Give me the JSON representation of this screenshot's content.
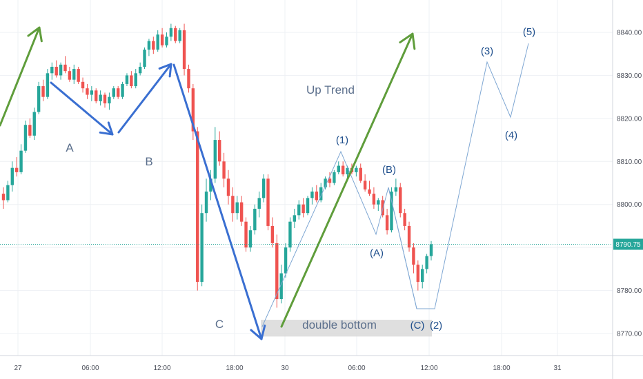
{
  "chart_data": {
    "type": "candlestick",
    "title": "",
    "xlabel": "",
    "ylabel": "",
    "x_ticks": [
      "27",
      "06:00",
      "12:00",
      "18:00",
      "30",
      "06:00",
      "12:00",
      "18:00",
      "31"
    ],
    "y_ticks": [
      8770.0,
      8780.0,
      8790.0,
      8800.0,
      8810.0,
      8820.0,
      8830.0,
      8840.0
    ],
    "ylim": [
      8764.0,
      8846.0
    ],
    "last_price": "8790.75",
    "candles": [
      [
        8802.5,
        8804.0,
        8799.0,
        8801.0
      ],
      [
        8801.0,
        8805.5,
        8800.5,
        8804.5
      ],
      [
        8804.5,
        8810.0,
        8803.0,
        8808.5
      ],
      [
        8808.5,
        8811.0,
        8806.5,
        8807.5
      ],
      [
        8807.5,
        8814.0,
        8807.0,
        8812.5
      ],
      [
        8812.5,
        8819.5,
        8812.0,
        8818.5
      ],
      [
        8818.5,
        8820.0,
        8815.5,
        8816.0
      ],
      [
        8816.0,
        8822.5,
        8815.0,
        8821.5
      ],
      [
        8821.5,
        8828.5,
        8821.0,
        8827.5
      ],
      [
        8827.5,
        8829.0,
        8824.0,
        8825.0
      ],
      [
        8825.0,
        8831.5,
        8824.5,
        8830.5
      ],
      [
        8830.5,
        8833.0,
        8829.0,
        8832.0
      ],
      [
        8832.0,
        8833.5,
        8829.5,
        8830.0
      ],
      [
        8830.0,
        8833.0,
        8829.0,
        8832.5
      ],
      [
        8832.5,
        8834.5,
        8830.5,
        8831.0
      ],
      [
        8831.0,
        8832.0,
        8828.5,
        8829.0
      ],
      [
        8829.0,
        8832.5,
        8828.0,
        8831.5
      ],
      [
        8831.5,
        8832.0,
        8828.0,
        8828.5
      ],
      [
        8828.5,
        8829.5,
        8826.0,
        8827.0
      ],
      [
        8827.0,
        8828.0,
        8824.5,
        8825.5
      ],
      [
        8825.5,
        8827.5,
        8824.0,
        8826.5
      ],
      [
        8826.5,
        8827.0,
        8823.5,
        8824.0
      ],
      [
        8824.0,
        8826.5,
        8823.0,
        8825.5
      ],
      [
        8825.5,
        8826.0,
        8822.5,
        8823.5
      ],
      [
        8823.5,
        8826.0,
        8822.0,
        8825.0
      ],
      [
        8825.0,
        8827.5,
        8824.5,
        8827.0
      ],
      [
        8827.0,
        8827.5,
        8824.5,
        8825.0
      ],
      [
        8825.0,
        8828.5,
        8824.5,
        8828.0
      ],
      [
        8828.0,
        8830.5,
        8827.5,
        8830.0
      ],
      [
        8830.0,
        8831.0,
        8827.0,
        8827.5
      ],
      [
        8827.5,
        8831.5,
        8827.0,
        8830.5
      ],
      [
        8830.5,
        8833.0,
        8830.0,
        8832.0
      ],
      [
        8832.0,
        8836.5,
        8831.5,
        8836.0
      ],
      [
        8836.0,
        8838.5,
        8834.5,
        8838.0
      ],
      [
        8838.0,
        8839.0,
        8835.0,
        8836.0
      ],
      [
        8836.0,
        8840.5,
        8835.5,
        8839.5
      ],
      [
        8839.5,
        8841.0,
        8836.5,
        8837.0
      ],
      [
        8837.0,
        8840.0,
        8836.5,
        8839.0
      ],
      [
        8839.0,
        8842.0,
        8838.0,
        8841.0
      ],
      [
        8841.0,
        8841.5,
        8837.5,
        8838.0
      ],
      [
        8838.0,
        8841.0,
        8837.5,
        8840.5
      ],
      [
        8840.5,
        8842.0,
        8830.0,
        8831.5
      ],
      [
        8831.5,
        8832.5,
        8826.0,
        8827.0
      ],
      [
        8827.0,
        8828.0,
        8815.0,
        8817.0
      ],
      [
        8817.0,
        8818.0,
        8780.0,
        8782.0
      ],
      [
        8782.0,
        8800.0,
        8781.0,
        8798.0
      ],
      [
        8798.0,
        8806.0,
        8796.0,
        8803.0
      ],
      [
        8803.0,
        8808.0,
        8801.0,
        8806.0
      ],
      [
        8806.0,
        8818.0,
        8805.0,
        8815.0
      ],
      [
        8815.0,
        8817.0,
        8809.0,
        8810.0
      ],
      [
        8810.0,
        8812.0,
        8804.0,
        8806.0
      ],
      [
        8806.0,
        8808.0,
        8800.0,
        8802.0
      ],
      [
        8802.0,
        8804.0,
        8796.0,
        8798.0
      ],
      [
        8798.0,
        8802.0,
        8796.5,
        8800.5
      ],
      [
        8800.5,
        8802.0,
        8795.0,
        8796.0
      ],
      [
        8796.0,
        8797.0,
        8789.0,
        8790.0
      ],
      [
        8790.0,
        8795.0,
        8789.0,
        8794.0
      ],
      [
        8794.0,
        8800.0,
        8793.0,
        8799.0
      ],
      [
        8799.0,
        8803.0,
        8797.0,
        8801.5
      ],
      [
        8801.5,
        8807.0,
        8800.5,
        8806.0
      ],
      [
        8806.0,
        8807.0,
        8794.0,
        8795.0
      ],
      [
        8795.0,
        8797.0,
        8790.0,
        8791.0
      ],
      [
        8791.0,
        8793.0,
        8776.0,
        8778.0
      ],
      [
        8778.0,
        8786.0,
        8777.0,
        8784.0
      ],
      [
        8784.0,
        8791.0,
        8783.0,
        8790.0
      ],
      [
        8790.0,
        8797.0,
        8789.0,
        8796.0
      ],
      [
        8796.0,
        8799.0,
        8794.5,
        8797.5
      ],
      [
        8797.5,
        8801.0,
        8796.5,
        8800.0
      ],
      [
        8800.0,
        8801.5,
        8797.0,
        8798.0
      ],
      [
        8798.0,
        8802.0,
        8797.5,
        8801.5
      ],
      [
        8801.5,
        8804.0,
        8800.0,
        8803.0
      ],
      [
        8803.0,
        8804.5,
        8800.5,
        8801.0
      ],
      [
        8801.0,
        8805.0,
        8800.5,
        8804.0
      ],
      [
        8804.0,
        8806.5,
        8803.5,
        8806.0
      ],
      [
        8806.0,
        8807.5,
        8804.0,
        8805.0
      ],
      [
        8805.0,
        8808.0,
        8804.5,
        8807.5
      ],
      [
        8807.5,
        8810.0,
        8807.0,
        8809.0
      ],
      [
        8809.0,
        8810.0,
        8806.5,
        8807.0
      ],
      [
        8807.0,
        8809.0,
        8806.0,
        8808.5
      ],
      [
        8808.5,
        8809.5,
        8807.0,
        8807.5
      ],
      [
        8807.5,
        8809.0,
        8806.5,
        8808.5
      ],
      [
        8808.5,
        8809.5,
        8805.0,
        8805.5
      ],
      [
        8805.5,
        8807.0,
        8803.0,
        8803.5
      ],
      [
        8803.5,
        8805.5,
        8802.0,
        8802.5
      ],
      [
        8802.5,
        8804.0,
        8799.0,
        8800.0
      ],
      [
        8800.0,
        8801.5,
        8798.5,
        8801.0
      ],
      [
        8801.0,
        8802.0,
        8797.0,
        8797.5
      ],
      [
        8797.5,
        8799.0,
        8793.0,
        8794.0
      ],
      [
        8794.0,
        8804.0,
        8793.5,
        8803.0
      ],
      [
        8803.0,
        8806.0,
        8802.0,
        8804.0
      ],
      [
        8804.0,
        8805.0,
        8797.0,
        8798.0
      ],
      [
        8798.0,
        8799.0,
        8794.0,
        8795.0
      ],
      [
        8795.0,
        8796.0,
        8789.0,
        8790.0
      ],
      [
        8790.0,
        8791.0,
        8784.0,
        8786.0
      ],
      [
        8786.0,
        8787.0,
        8780.0,
        8782.0
      ],
      [
        8782.0,
        8786.0,
        8780.5,
        8785.0
      ],
      [
        8785.0,
        8788.5,
        8784.0,
        8788.0
      ],
      [
        8788.0,
        8791.5,
        8787.0,
        8790.75
      ]
    ],
    "annotations": {
      "trend_label": "Up Trend",
      "zone_label": "double bottom",
      "letters": [
        "A",
        "B",
        "C"
      ],
      "waves": [
        "(1)",
        "(2)",
        "(3)",
        "(4)",
        "(5)"
      ],
      "corrective": [
        "(A)",
        "(B)",
        "(C)"
      ]
    },
    "colors": {
      "up": "#26a69a",
      "down": "#ef5350",
      "green_arrow": "#5f9d3b",
      "blue_arrow": "#3a6fd1",
      "wave_line": "#7fa7d3",
      "zone": "#d9d9d9"
    }
  }
}
